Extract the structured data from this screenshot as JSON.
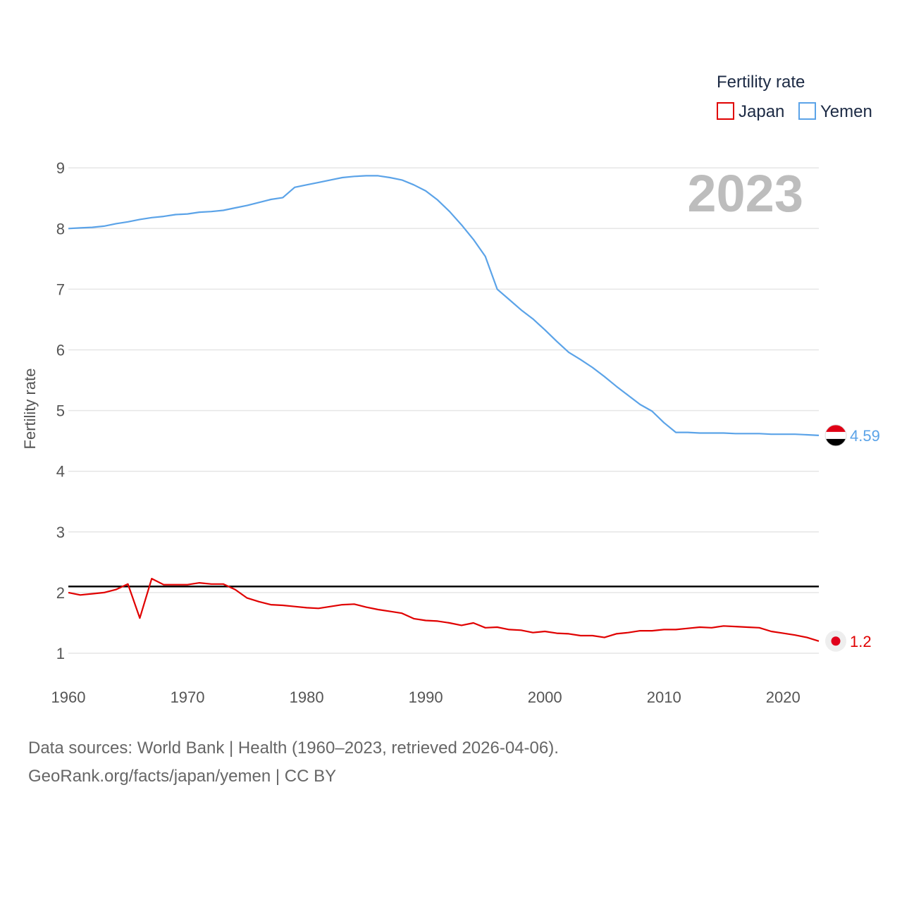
{
  "chart_data": {
    "type": "line",
    "title": "",
    "year_label": "2023",
    "ylabel": "Fertility rate",
    "xlabel": "",
    "xlim": [
      1960,
      2023
    ],
    "ylim": [
      0.5,
      9.5
    ],
    "yticks": [
      1,
      2,
      3,
      4,
      5,
      6,
      7,
      8,
      9
    ],
    "xticks": [
      1960,
      1970,
      1980,
      1990,
      2000,
      2010,
      2020
    ],
    "reference_line": {
      "value": 2.1,
      "color": "#000000"
    },
    "legend": {
      "title": "Fertility rate",
      "position": "top-right"
    },
    "series": [
      {
        "name": "Japan",
        "color": "#e00000",
        "end_label": "1.2",
        "x": [
          1960,
          1961,
          1962,
          1963,
          1964,
          1965,
          1966,
          1967,
          1968,
          1969,
          1970,
          1971,
          1972,
          1973,
          1974,
          1975,
          1976,
          1977,
          1978,
          1979,
          1980,
          1981,
          1982,
          1983,
          1984,
          1985,
          1986,
          1987,
          1988,
          1989,
          1990,
          1991,
          1992,
          1993,
          1994,
          1995,
          1996,
          1997,
          1998,
          1999,
          2000,
          2001,
          2002,
          2003,
          2004,
          2005,
          2006,
          2007,
          2008,
          2009,
          2010,
          2011,
          2012,
          2013,
          2014,
          2015,
          2016,
          2017,
          2018,
          2019,
          2020,
          2021,
          2022,
          2023
        ],
        "values": [
          2.0,
          1.96,
          1.98,
          2.0,
          2.05,
          2.14,
          1.58,
          2.23,
          2.13,
          2.13,
          2.13,
          2.16,
          2.14,
          2.14,
          2.05,
          1.91,
          1.85,
          1.8,
          1.79,
          1.77,
          1.75,
          1.74,
          1.77,
          1.8,
          1.81,
          1.76,
          1.72,
          1.69,
          1.66,
          1.57,
          1.54,
          1.53,
          1.5,
          1.46,
          1.5,
          1.42,
          1.43,
          1.39,
          1.38,
          1.34,
          1.36,
          1.33,
          1.32,
          1.29,
          1.29,
          1.26,
          1.32,
          1.34,
          1.37,
          1.37,
          1.39,
          1.39,
          1.41,
          1.43,
          1.42,
          1.45,
          1.44,
          1.43,
          1.42,
          1.36,
          1.33,
          1.3,
          1.26,
          1.2
        ]
      },
      {
        "name": "Yemen",
        "color": "#5ba3e8",
        "end_label": "4.59",
        "x": [
          1960,
          1961,
          1962,
          1963,
          1964,
          1965,
          1966,
          1967,
          1968,
          1969,
          1970,
          1971,
          1972,
          1973,
          1974,
          1975,
          1976,
          1977,
          1978,
          1979,
          1980,
          1981,
          1982,
          1983,
          1984,
          1985,
          1986,
          1987,
          1988,
          1989,
          1990,
          1991,
          1992,
          1993,
          1994,
          1995,
          1996,
          1997,
          1998,
          1999,
          2000,
          2001,
          2002,
          2003,
          2004,
          2005,
          2006,
          2007,
          2008,
          2009,
          2010,
          2011,
          2012,
          2013,
          2014,
          2015,
          2016,
          2017,
          2018,
          2019,
          2020,
          2021,
          2022,
          2023
        ],
        "values": [
          8.0,
          8.01,
          8.02,
          8.04,
          8.08,
          8.11,
          8.15,
          8.18,
          8.2,
          8.23,
          8.24,
          8.27,
          8.28,
          8.3,
          8.34,
          8.38,
          8.43,
          8.48,
          8.51,
          8.68,
          8.72,
          8.76,
          8.8,
          8.84,
          8.86,
          8.87,
          8.87,
          8.84,
          8.8,
          8.72,
          8.62,
          8.47,
          8.28,
          8.06,
          7.82,
          7.54,
          7.0,
          6.83,
          6.66,
          6.51,
          6.33,
          6.14,
          5.96,
          5.84,
          5.71,
          5.56,
          5.4,
          5.25,
          5.1,
          4.99,
          4.8,
          4.64,
          4.64,
          4.63,
          4.63,
          4.63,
          4.62,
          4.62,
          4.62,
          4.61,
          4.61,
          4.61,
          4.6,
          4.59
        ]
      }
    ]
  },
  "source": {
    "line1": "Data sources: World Bank | Health (1960–2023, retrieved 2026-04-06).",
    "line2": "GeoRank.org/facts/japan/yemen | CC BY"
  }
}
